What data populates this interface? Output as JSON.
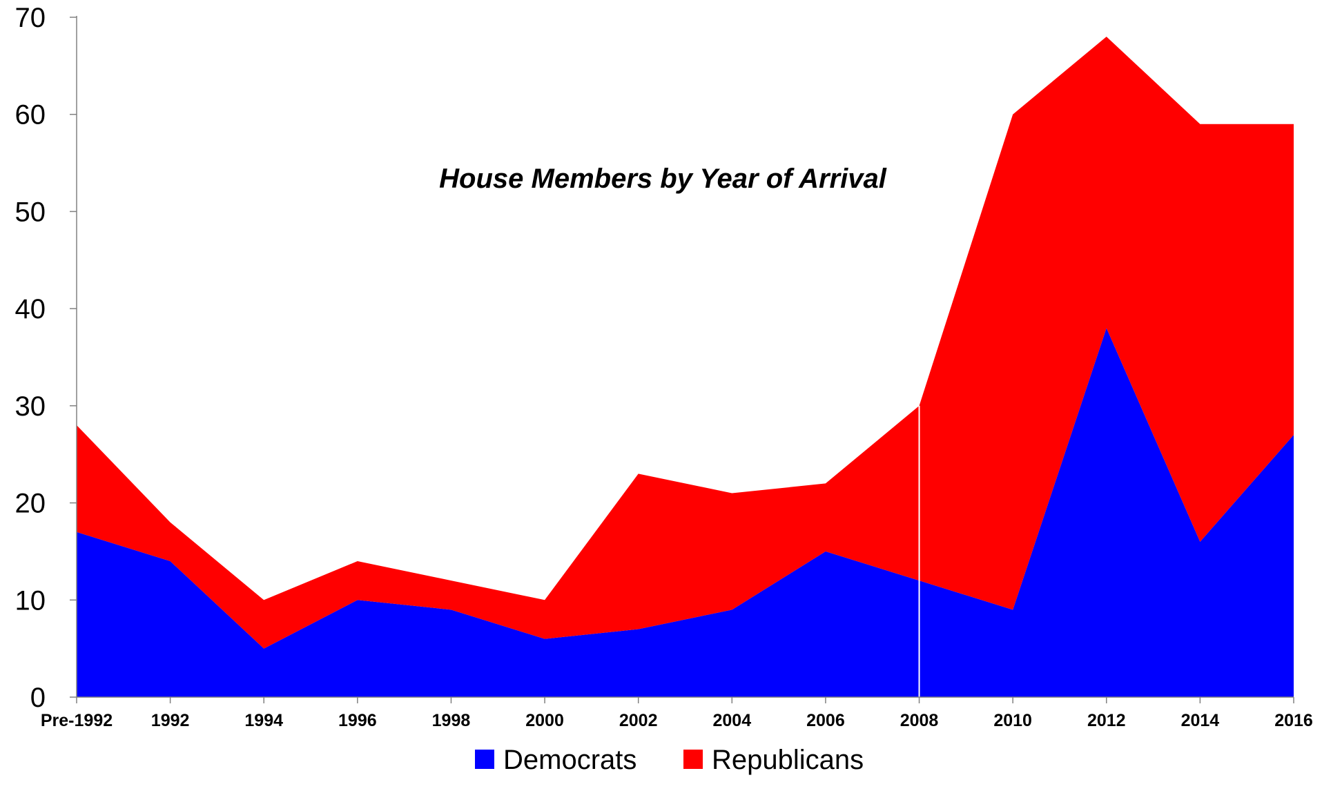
{
  "chart_data": {
    "type": "area",
    "stacked": true,
    "title": "House Members by Year of Arrival",
    "xlabel": "",
    "ylabel": "",
    "categories": [
      "Pre-1992",
      "1992",
      "1994",
      "1996",
      "1998",
      "2000",
      "2002",
      "2004",
      "2006",
      "2008",
      "2010",
      "2012",
      "2014",
      "2016"
    ],
    "series": [
      {
        "name": "Democrats",
        "color": "#0000ff",
        "values": [
          17,
          14,
          5,
          10,
          9,
          6,
          7,
          9,
          15,
          12,
          9,
          38,
          16,
          27
        ]
      },
      {
        "name": "Republicans",
        "color": "#ff0000",
        "values": [
          11,
          4,
          5,
          4,
          3,
          4,
          16,
          12,
          7,
          18,
          51,
          30,
          43,
          32
        ]
      }
    ],
    "totals": [
      28,
      18,
      10,
      14,
      12,
      10,
      23,
      21,
      22,
      30,
      60,
      68,
      59,
      59
    ],
    "ylim": [
      0,
      70
    ],
    "yticks": [
      0,
      10,
      20,
      30,
      40,
      50,
      60,
      70
    ],
    "grid": false,
    "legend_position": "bottom-center",
    "marker_category": "2008"
  }
}
